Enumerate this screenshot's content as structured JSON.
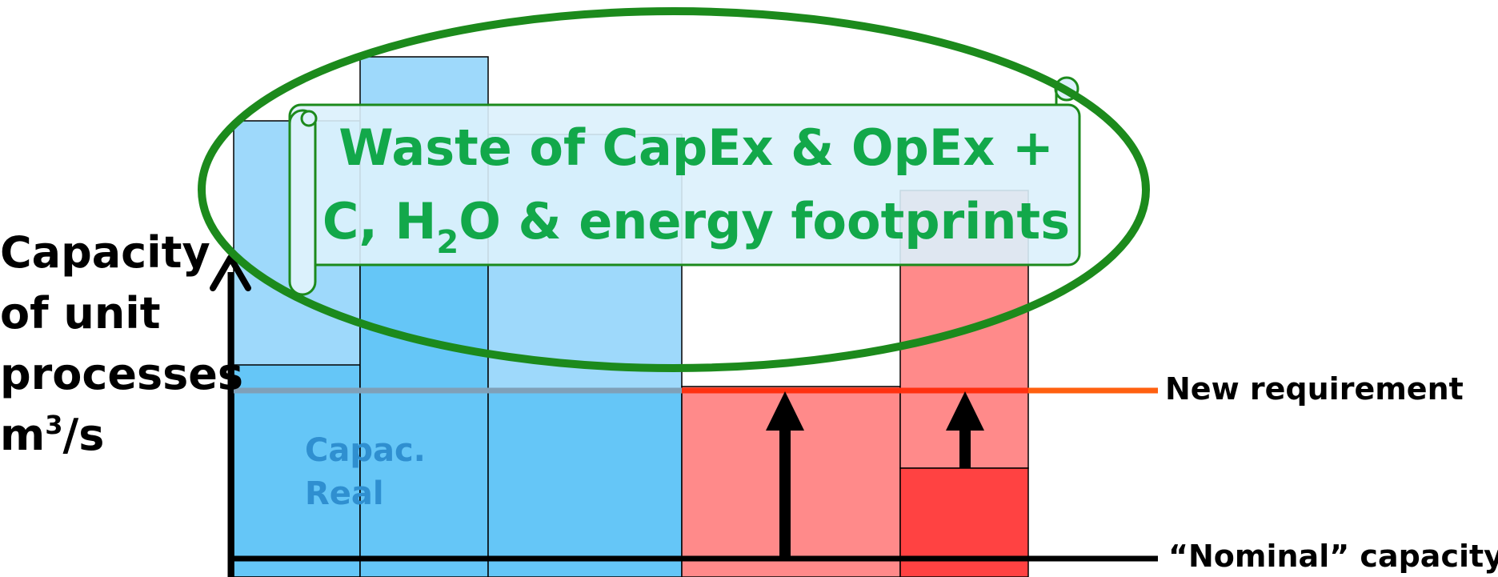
{
  "axis_label": {
    "line1": "Capacity",
    "line2": "of unit",
    "line3": "processes",
    "line4_base": "m",
    "line4_sup": "3",
    "line4_tail": "/s"
  },
  "real_label": {
    "line1": "Capac.",
    "line2": "Real"
  },
  "new_requirement_label": "New requirement",
  "nominal_label": "“Nominal” capacity",
  "banner": {
    "line1": "Waste of CapEx & OpEx +",
    "line2_a": "C, H",
    "line2_sub": "2",
    "line2_b": "O & energy footprints"
  },
  "colors": {
    "blue_light": "#9ed9fb",
    "blue_mid": "#65c6f7",
    "red_light": "#ff8a8a",
    "red_dark": "#ff4242",
    "green": "#12a84a",
    "ellipse_green": "#1c8a1c",
    "requirement_line": "#ff6010"
  }
}
